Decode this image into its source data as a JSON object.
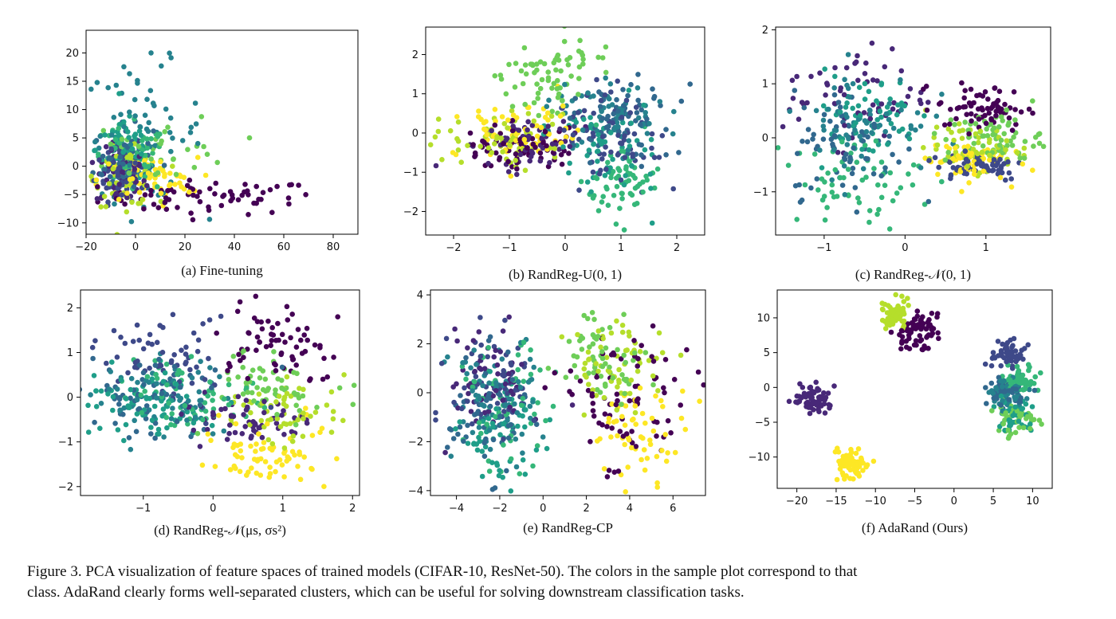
{
  "figure_caption": {
    "line1": "Figure 3. PCA visualization of feature spaces of trained models (CIFAR-10, ResNet-50). The colors in the sample plot correspond to that",
    "line2": "class. AdaRand clearly forms well-separated clusters, which can be useful for solving downstream classification tasks."
  },
  "class_colors": [
    "#440154",
    "#482878",
    "#3e4989",
    "#31688e",
    "#26828e",
    "#1f9e89",
    "#35b779",
    "#6ece58",
    "#b5de2b",
    "#fde725"
  ],
  "chart_data": [
    {
      "type": "scatter",
      "caption": "(a) Fine-tuning",
      "xlim": [
        -20,
        90
      ],
      "ylim": [
        -12,
        24
      ],
      "xticks": [
        -20,
        0,
        20,
        40,
        60,
        80
      ],
      "yticks": [
        -10,
        -5,
        0,
        5,
        10,
        15,
        20
      ],
      "grid": false,
      "clusters": [
        {
          "class": 0,
          "cx": 30,
          "cy": -5.5,
          "sx": 22,
          "sy": 1.5,
          "n": 70
        },
        {
          "class": 1,
          "cx": -6,
          "cy": -2,
          "sx": 5,
          "sy": 2.5,
          "n": 60
        },
        {
          "class": 2,
          "cx": -6,
          "cy": 0,
          "sx": 5,
          "sy": 3,
          "n": 60
        },
        {
          "class": 3,
          "cx": -5,
          "cy": 1,
          "sx": 6,
          "sy": 3,
          "n": 60
        },
        {
          "class": 4,
          "cx": 3,
          "cy": 6,
          "sx": 12,
          "sy": 6,
          "n": 70
        },
        {
          "class": 5,
          "cx": -4,
          "cy": 3,
          "sx": 6,
          "sy": 3,
          "n": 60
        },
        {
          "class": 6,
          "cx": -3,
          "cy": 1,
          "sx": 8,
          "sy": 3,
          "n": 60
        },
        {
          "class": 7,
          "cx": 10,
          "cy": 3,
          "sx": 15,
          "sy": 3,
          "n": 40
        },
        {
          "class": 8,
          "cx": -4,
          "cy": -2,
          "sx": 6,
          "sy": 2.5,
          "n": 60
        },
        {
          "class": 9,
          "cx": 5,
          "cy": -2.5,
          "sx": 10,
          "sy": 2,
          "n": 60
        }
      ]
    },
    {
      "type": "scatter",
      "caption": "(b) RandReg-U(0, 1)",
      "xlim": [
        -2.5,
        2.5
      ],
      "ylim": [
        -2.6,
        2.7
      ],
      "xticks": [
        -2,
        -1,
        0,
        1,
        2
      ],
      "yticks": [
        -2,
        -1,
        0,
        1,
        2
      ],
      "grid": false,
      "clusters": [
        {
          "class": 0,
          "cx": -0.8,
          "cy": -0.4,
          "sx": 0.45,
          "sy": 0.35,
          "n": 70
        },
        {
          "class": 1,
          "cx": -0.7,
          "cy": -0.2,
          "sx": 0.5,
          "sy": 0.35,
          "n": 60
        },
        {
          "class": 2,
          "cx": 0.8,
          "cy": 0,
          "sx": 0.5,
          "sy": 0.6,
          "n": 70
        },
        {
          "class": 3,
          "cx": 1.0,
          "cy": 0.3,
          "sx": 0.5,
          "sy": 0.5,
          "n": 70
        },
        {
          "class": 4,
          "cx": 0.7,
          "cy": 0.4,
          "sx": 0.5,
          "sy": 0.5,
          "n": 60
        },
        {
          "class": 5,
          "cx": 0.7,
          "cy": -0.3,
          "sx": 0.5,
          "sy": 0.6,
          "n": 60
        },
        {
          "class": 6,
          "cx": 1.0,
          "cy": -1.3,
          "sx": 0.35,
          "sy": 0.45,
          "n": 60
        },
        {
          "class": 7,
          "cx": -0.2,
          "cy": 1.6,
          "sx": 0.45,
          "sy": 0.45,
          "n": 70
        },
        {
          "class": 8,
          "cx": -1.1,
          "cy": -0.2,
          "sx": 0.55,
          "sy": 0.35,
          "n": 60
        },
        {
          "class": 9,
          "cx": -0.8,
          "cy": 0,
          "sx": 0.5,
          "sy": 0.35,
          "n": 70
        }
      ]
    },
    {
      "type": "scatter",
      "caption": "(c) RandReg-𝒩(0, 1)",
      "xlim": [
        -1.6,
        1.8
      ],
      "ylim": [
        -1.8,
        2.05
      ],
      "xticks": [
        -1,
        0,
        1
      ],
      "yticks": [
        -1,
        0,
        1,
        2
      ],
      "grid": false,
      "clusters": [
        {
          "class": 0,
          "cx": 0.95,
          "cy": 0.55,
          "sx": 0.28,
          "sy": 0.22,
          "n": 70
        },
        {
          "class": 1,
          "cx": -0.6,
          "cy": 0.8,
          "sx": 0.45,
          "sy": 0.45,
          "n": 60
        },
        {
          "class": 2,
          "cx": 0.9,
          "cy": -0.5,
          "sx": 0.3,
          "sy": 0.15,
          "n": 60
        },
        {
          "class": 3,
          "cx": -0.7,
          "cy": -0.1,
          "sx": 0.35,
          "sy": 0.5,
          "n": 70
        },
        {
          "class": 4,
          "cx": -0.5,
          "cy": 0.3,
          "sx": 0.4,
          "sy": 0.5,
          "n": 70
        },
        {
          "class": 5,
          "cx": -0.5,
          "cy": 0.4,
          "sx": 0.35,
          "sy": 0.4,
          "n": 60
        },
        {
          "class": 6,
          "cx": -0.6,
          "cy": -0.8,
          "sx": 0.4,
          "sy": 0.4,
          "n": 60
        },
        {
          "class": 7,
          "cx": 1.1,
          "cy": 0,
          "sx": 0.3,
          "sy": 0.25,
          "n": 70
        },
        {
          "class": 8,
          "cx": 0.85,
          "cy": -0.2,
          "sx": 0.3,
          "sy": 0.2,
          "n": 60
        },
        {
          "class": 9,
          "cx": 0.75,
          "cy": -0.4,
          "sx": 0.25,
          "sy": 0.2,
          "n": 60
        }
      ]
    },
    {
      "type": "scatter",
      "caption": "(d) RandReg-𝒩(μs, σs²)",
      "xlim": [
        -1.9,
        2.1
      ],
      "ylim": [
        -2.2,
        2.4
      ],
      "xticks": [
        -1,
        0,
        1,
        2
      ],
      "yticks": [
        -2,
        -1,
        0,
        1,
        2
      ],
      "grid": false,
      "clusters": [
        {
          "class": 0,
          "cx": 0.85,
          "cy": 1.1,
          "sx": 0.4,
          "sy": 0.5,
          "n": 70
        },
        {
          "class": 1,
          "cx": 0.55,
          "cy": -0.6,
          "sx": 0.45,
          "sy": 0.3,
          "n": 60
        },
        {
          "class": 2,
          "cx": -0.6,
          "cy": 0.8,
          "sx": 0.45,
          "sy": 0.45,
          "n": 60
        },
        {
          "class": 3,
          "cx": -0.9,
          "cy": 0.1,
          "sx": 0.5,
          "sy": 0.45,
          "n": 70
        },
        {
          "class": 4,
          "cx": -0.6,
          "cy": -0.1,
          "sx": 0.5,
          "sy": 0.45,
          "n": 70
        },
        {
          "class": 5,
          "cx": -0.9,
          "cy": -0.1,
          "sx": 0.5,
          "sy": 0.4,
          "n": 70
        },
        {
          "class": 6,
          "cx": -0.3,
          "cy": 0,
          "sx": 0.45,
          "sy": 0.4,
          "n": 60
        },
        {
          "class": 7,
          "cx": 0.8,
          "cy": 0.3,
          "sx": 0.45,
          "sy": 0.4,
          "n": 60
        },
        {
          "class": 8,
          "cx": 1.1,
          "cy": -0.3,
          "sx": 0.4,
          "sy": 0.4,
          "n": 60
        },
        {
          "class": 9,
          "cx": 0.8,
          "cy": -1.2,
          "sx": 0.4,
          "sy": 0.35,
          "n": 70
        }
      ]
    },
    {
      "type": "scatter",
      "caption": "(e) RandReg-CP",
      "xlim": [
        -5.2,
        7.5
      ],
      "ylim": [
        -4.2,
        4.2
      ],
      "xticks": [
        -4,
        -2,
        0,
        2,
        4,
        6
      ],
      "yticks": [
        -4,
        -2,
        0,
        2,
        4
      ],
      "grid": false,
      "clusters": [
        {
          "class": 0,
          "cx": 3.8,
          "cy": -0.5,
          "sx": 1.6,
          "sy": 1.6,
          "n": 80
        },
        {
          "class": 1,
          "cx": -2.5,
          "cy": 0.5,
          "sx": 0.9,
          "sy": 1.1,
          "n": 60
        },
        {
          "class": 2,
          "cx": -2.2,
          "cy": 0.3,
          "sx": 1.0,
          "sy": 1.2,
          "n": 60
        },
        {
          "class": 3,
          "cx": -2.6,
          "cy": -1.0,
          "sx": 0.9,
          "sy": 1.2,
          "n": 60
        },
        {
          "class": 4,
          "cx": -2.3,
          "cy": -0.3,
          "sx": 1.0,
          "sy": 1.3,
          "n": 70
        },
        {
          "class": 5,
          "cx": -2.0,
          "cy": -1.6,
          "sx": 0.9,
          "sy": 1.0,
          "n": 60
        },
        {
          "class": 6,
          "cx": -1.6,
          "cy": -0.6,
          "sx": 1.0,
          "sy": 1.2,
          "n": 60
        },
        {
          "class": 7,
          "cx": 2.8,
          "cy": 1.6,
          "sx": 1.0,
          "sy": 0.9,
          "n": 60
        },
        {
          "class": 8,
          "cx": 3.5,
          "cy": 1.2,
          "sx": 1.2,
          "sy": 0.9,
          "n": 60
        },
        {
          "class": 9,
          "cx": 4.5,
          "cy": -1.6,
          "sx": 1.1,
          "sy": 0.9,
          "n": 60
        }
      ]
    },
    {
      "type": "scatter",
      "caption": "(f) AdaRand (Ours)",
      "xlim": [
        -22.5,
        12.5
      ],
      "ylim": [
        -14.5,
        14
      ],
      "xticks": [
        -20,
        -15,
        -10,
        -5,
        0,
        5,
        10
      ],
      "yticks": [
        -10,
        -5,
        0,
        5,
        10
      ],
      "grid": false,
      "clusters": [
        {
          "class": 0,
          "cx": -4.5,
          "cy": 8,
          "sx": 1.2,
          "sy": 1.2,
          "n": 70
        },
        {
          "class": 1,
          "cx": -18,
          "cy": -1.5,
          "sx": 1.2,
          "sy": 1.1,
          "n": 70
        },
        {
          "class": 2,
          "cx": 7,
          "cy": 4.5,
          "sx": 1.0,
          "sy": 1.0,
          "n": 60
        },
        {
          "class": 3,
          "cx": 6.5,
          "cy": -0.5,
          "sx": 1.2,
          "sy": 1.2,
          "n": 40
        },
        {
          "class": 4,
          "cx": 7,
          "cy": -1,
          "sx": 1.3,
          "sy": 1.3,
          "n": 50
        },
        {
          "class": 5,
          "cx": 7.5,
          "cy": -4,
          "sx": 1.2,
          "sy": 1.1,
          "n": 40
        },
        {
          "class": 6,
          "cx": 8.5,
          "cy": 1,
          "sx": 1.0,
          "sy": 0.8,
          "n": 60
        },
        {
          "class": 7,
          "cx": 8,
          "cy": -4.5,
          "sx": 1.2,
          "sy": 1.1,
          "n": 50
        },
        {
          "class": 8,
          "cx": -7.5,
          "cy": 10.5,
          "sx": 1.0,
          "sy": 1.1,
          "n": 70
        },
        {
          "class": 9,
          "cx": -13,
          "cy": -11,
          "sx": 1.1,
          "sy": 1.5,
          "n": 70
        }
      ]
    }
  ]
}
